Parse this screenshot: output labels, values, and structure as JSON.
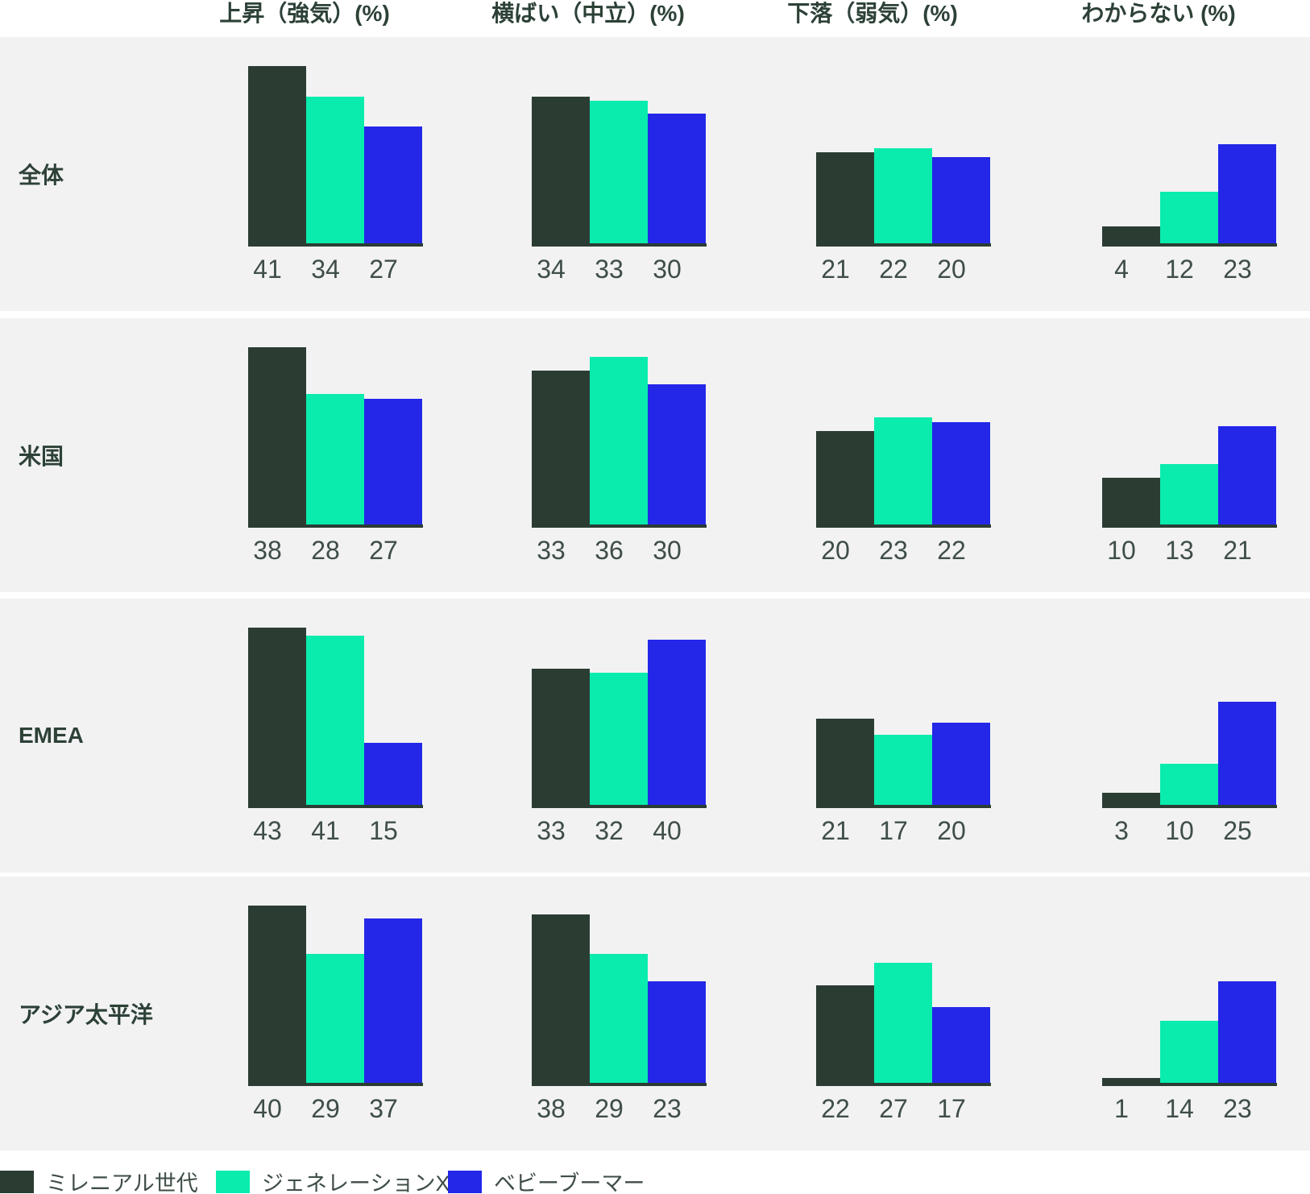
{
  "chart_data": {
    "type": "bar",
    "title": "",
    "unit": "%",
    "columns": [
      "上昇（強気）(%)",
      "横ばい（中立）(%)",
      "下落（弱気）(%)",
      "わからない (%)"
    ],
    "series": [
      {
        "name": "ミレニアル世代",
        "color": "#2b3d33"
      },
      {
        "name": "ジェネレーションX",
        "color": "#09ecae"
      },
      {
        "name": "ベビーブーマー",
        "color": "#2427e8"
      }
    ],
    "rows": [
      {
        "label": "全体",
        "values": [
          [
            41,
            34,
            27
          ],
          [
            34,
            33,
            30
          ],
          [
            21,
            22,
            20
          ],
          [
            4,
            12,
            23
          ]
        ]
      },
      {
        "label": "米国",
        "values": [
          [
            38,
            28,
            27
          ],
          [
            33,
            36,
            30
          ],
          [
            20,
            23,
            22
          ],
          [
            10,
            13,
            21
          ]
        ]
      },
      {
        "label": "EMEA",
        "values": [
          [
            43,
            41,
            15
          ],
          [
            33,
            32,
            40
          ],
          [
            21,
            17,
            20
          ],
          [
            3,
            10,
            25
          ]
        ]
      },
      {
        "label": "アジア太平洋",
        "values": [
          [
            40,
            29,
            37
          ],
          [
            38,
            29,
            23
          ],
          [
            22,
            27,
            17
          ],
          [
            1,
            14,
            23
          ]
        ]
      }
    ],
    "layout_hints": {
      "grid": "off",
      "legend_position": "bottom-left",
      "bars_normalized_per_row_max": true,
      "value_labels": "below bars"
    }
  },
  "legend": {
    "items": [
      {
        "label": "ミレニアル世代",
        "color": "#2b3d33"
      },
      {
        "label": "ジェネレーションX",
        "color": "#09ecae"
      },
      {
        "label": "ベビーブーマー",
        "color": "#2427e8"
      }
    ]
  },
  "colors": {
    "page_bg": "#ffffff",
    "band_bg": "#f2f2f3",
    "axis": "#2b3d33",
    "header_text": "#2d4137",
    "value_text": "#3f4e46"
  }
}
